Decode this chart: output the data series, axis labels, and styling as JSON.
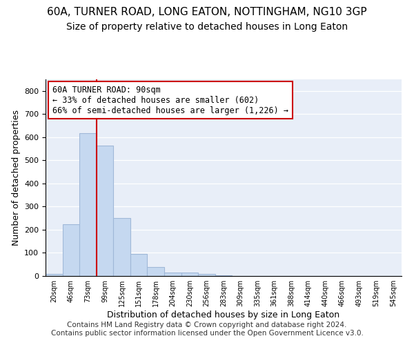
{
  "title": "60A, TURNER ROAD, LONG EATON, NOTTINGHAM, NG10 3GP",
  "subtitle": "Size of property relative to detached houses in Long Eaton",
  "xlabel": "Distribution of detached houses by size in Long Eaton",
  "ylabel": "Number of detached properties",
  "bar_values": [
    8,
    225,
    618,
    565,
    250,
    95,
    40,
    15,
    15,
    8,
    3,
    0,
    0,
    0,
    0,
    0,
    0,
    0,
    0,
    0,
    0
  ],
  "bar_color": "#c5d8f0",
  "bar_edgecolor": "#a0b8d8",
  "vline_x": 2.5,
  "vline_color": "#cc0000",
  "annotation_text": "60A TURNER ROAD: 90sqm\n← 33% of detached houses are smaller (602)\n66% of semi-detached houses are larger (1,226) →",
  "annotation_box_color": "white",
  "annotation_box_edgecolor": "#cc0000",
  "ylim": [
    0,
    850
  ],
  "yticks": [
    0,
    100,
    200,
    300,
    400,
    500,
    600,
    700,
    800
  ],
  "background_color": "#e8eef8",
  "footer_line1": "Contains HM Land Registry data © Crown copyright and database right 2024.",
  "footer_line2": "Contains public sector information licensed under the Open Government Licence v3.0.",
  "title_fontsize": 11,
  "subtitle_fontsize": 10,
  "xlabel_fontsize": 9,
  "ylabel_fontsize": 9,
  "annotation_fontsize": 8.5,
  "footer_fontsize": 7.5,
  "tick_labels": [
    "20sqm",
    "46sqm",
    "73sqm",
    "99sqm",
    "125sqm",
    "151sqm",
    "178sqm",
    "204sqm",
    "230sqm",
    "256sqm",
    "283sqm",
    "309sqm",
    "335sqm",
    "361sqm",
    "388sqm",
    "414sqm",
    "440sqm",
    "466sqm",
    "493sqm",
    "519sqm",
    "545sqm"
  ]
}
